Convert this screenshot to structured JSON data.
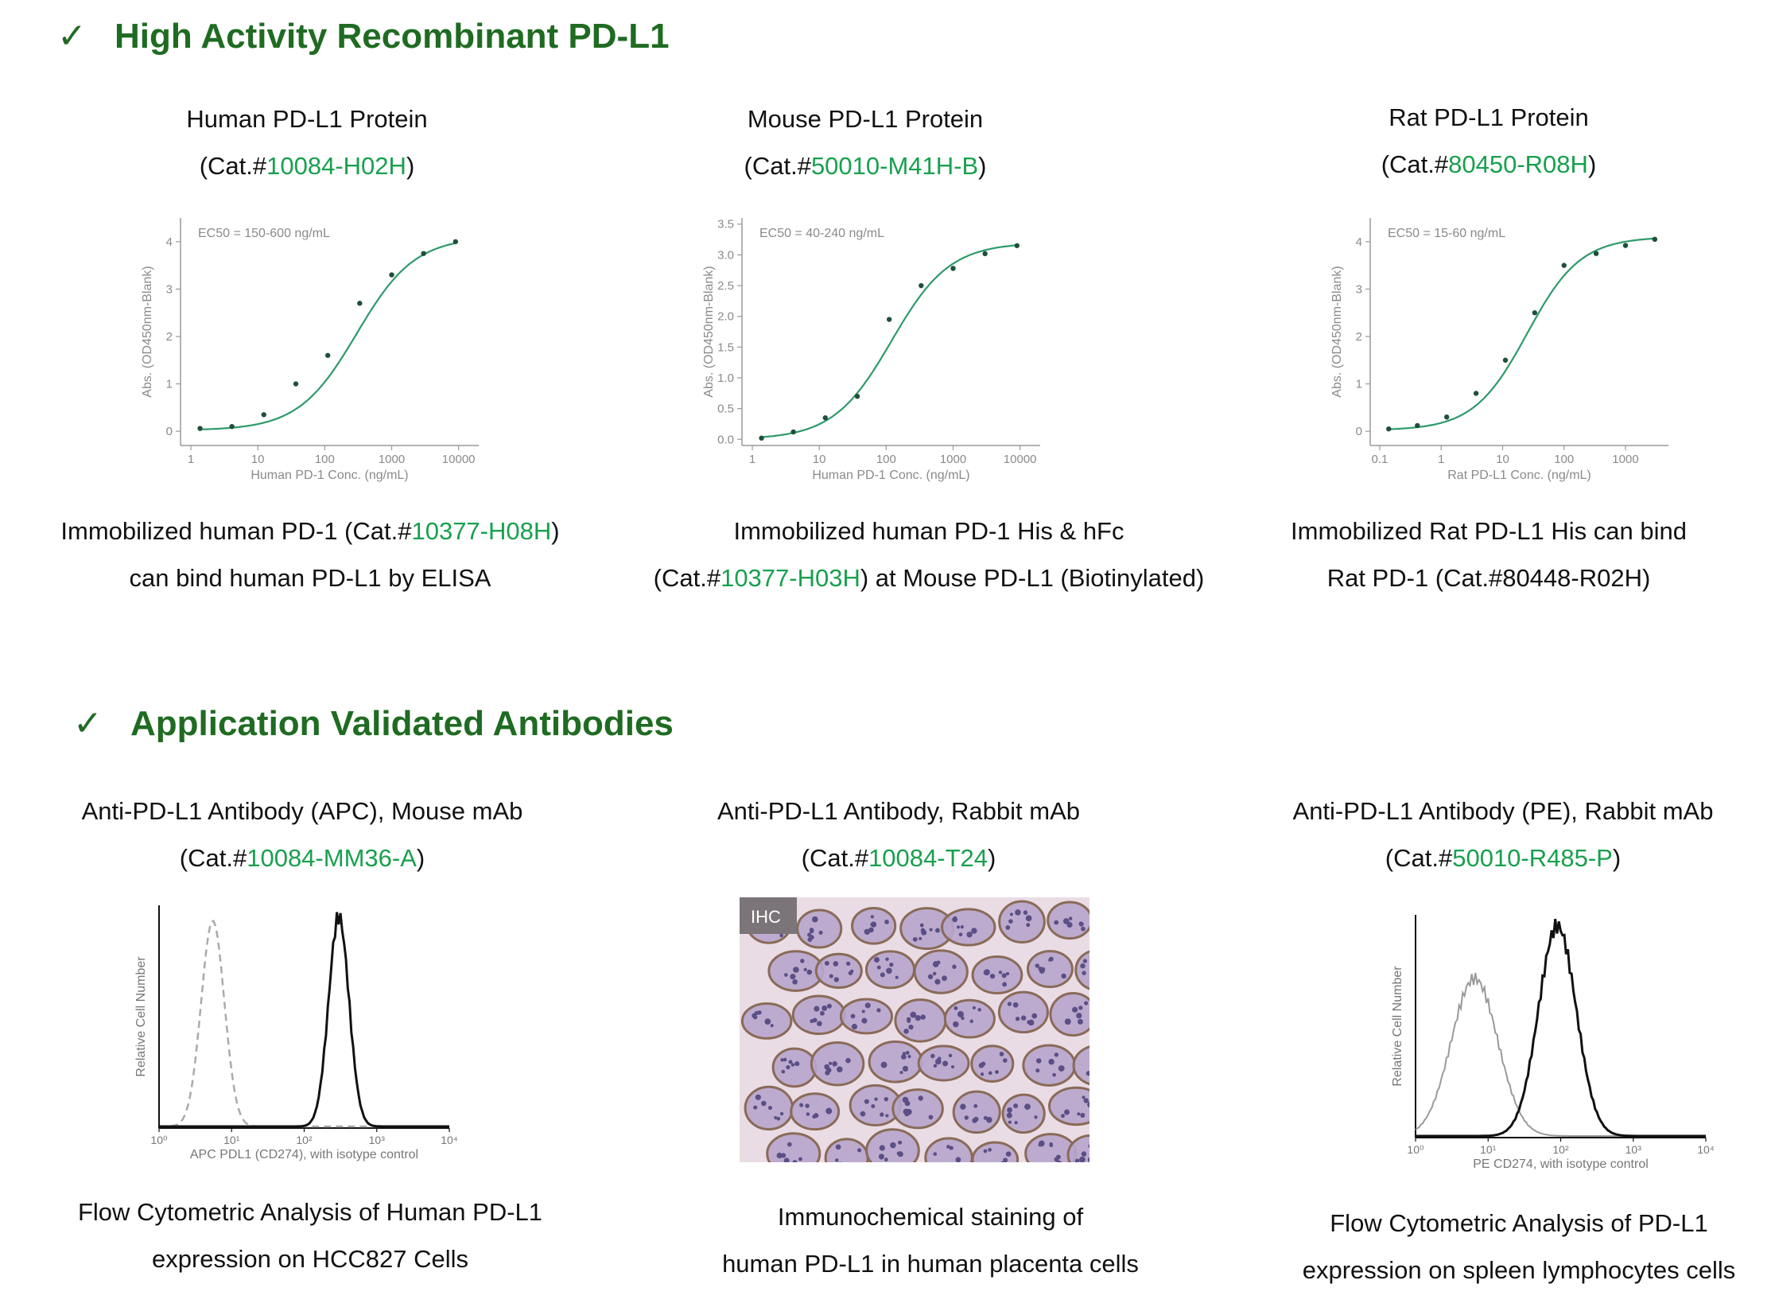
{
  "sections": [
    {
      "check": "✓",
      "title": "High Activity Recombinant PD-L1"
    },
    {
      "check": "✓",
      "title": "Application Validated Antibodies"
    }
  ],
  "proteins": [
    {
      "name": "Human PD-L1 Protein",
      "cat_prefix": "(Cat.#",
      "cat_id": "10084-H02H",
      "cat_suffix": ")",
      "caption_l1_pre": "Immobilized human PD-1 (Cat.#",
      "caption_l1_id": "10377-H08H",
      "caption_l1_post": ")",
      "caption_l2_pre": "can bind human PD-L1 by ELISA",
      "caption_l2_id": "",
      "caption_l2_post": ""
    },
    {
      "name": "Mouse PD-L1 Protein",
      "cat_prefix": "(Cat.#",
      "cat_id": "50010-M41H-B",
      "cat_suffix": ")",
      "caption_l1_pre": "Immobilized human PD-1 His & hFc",
      "caption_l1_id": "",
      "caption_l1_post": "",
      "caption_l2_pre": "(Cat.#",
      "caption_l2_id": "10377-H03H",
      "caption_l2_post": ") at Mouse PD-L1 (Biotinylated)"
    },
    {
      "name": "Rat PD-L1 Protein",
      "cat_prefix": "(Cat.#",
      "cat_id": "80450-R08H",
      "cat_suffix": ")",
      "caption_l1_pre": "Immobilized Rat PD-L1 His can bind",
      "caption_l1_id": "",
      "caption_l1_post": "",
      "caption_l2_pre": "Rat PD-1 (Cat.#80448-R02H)",
      "caption_l2_id": "",
      "caption_l2_post": ""
    }
  ],
  "antibodies": [
    {
      "name": "Anti-PD-L1 Antibody (APC), Mouse mAb",
      "cat_prefix": "(Cat.#",
      "cat_id": "10084-MM36-A",
      "cat_suffix": ")",
      "caption_l1": "Flow Cytometric Analysis of Human PD-L1",
      "caption_l2": "expression on HCC827 Cells"
    },
    {
      "name": "Anti-PD-L1 Antibody, Rabbit mAb",
      "cat_prefix": "(Cat.#",
      "cat_id": "10084-T24",
      "cat_suffix": ")",
      "caption_l1": "Immunochemical staining of",
      "caption_l2": "human PD-L1 in human placenta cells"
    },
    {
      "name": "Anti-PD-L1 Antibody (PE), Rabbit mAb",
      "cat_prefix": "(Cat.#",
      "cat_id": "50010-R485-P",
      "cat_suffix": ")",
      "caption_l1": "Flow Cytometric Analysis of PD-L1",
      "caption_l2": "expression on spleen lymphocytes cells"
    }
  ],
  "ihc_label": "IHC",
  "colors": {
    "heading": "#1f6b22",
    "catalog": "#18a04e",
    "curve": "#2e9a6a"
  },
  "chart_data": [
    {
      "type": "line",
      "annotation": "EC50 = 150-600 ng/mL",
      "xlabel": "Human PD-1 Conc. (ng/mL)",
      "ylabel": "Abs. (OD450nm-Blank)",
      "xscale": "log",
      "xlim": [
        0.7,
        20000
      ],
      "ylim": [
        -0.3,
        4.5
      ],
      "xticks": [
        1,
        10,
        100,
        1000,
        10000
      ],
      "xticklabels": [
        "1",
        "10",
        "100",
        "1000",
        "10000"
      ],
      "yticks": [
        0,
        1,
        2,
        3,
        4
      ],
      "yticklabels": [
        "0",
        "1",
        "2",
        "3",
        "4"
      ],
      "x": [
        1.37,
        4.1,
        12.3,
        37,
        111,
        333,
        1000,
        3000,
        9000
      ],
      "y": [
        0.06,
        0.1,
        0.35,
        1.0,
        1.6,
        2.7,
        3.3,
        3.75,
        4.0
      ],
      "fit": {
        "bottom": 0.02,
        "top": 4.1,
        "ec50": 300,
        "hill": 1.0
      }
    },
    {
      "type": "line",
      "annotation": "EC50 = 40-240 ng/mL",
      "xlabel": "Human PD-1 Conc. (ng/mL)",
      "ylabel": "Abs. (OD450nm-Blank)",
      "xscale": "log",
      "xlim": [
        0.7,
        20000
      ],
      "ylim": [
        -0.1,
        3.6
      ],
      "xticks": [
        1,
        10,
        100,
        1000,
        10000
      ],
      "xticklabels": [
        "1",
        "10",
        "100",
        "1000",
        "10000"
      ],
      "yticks": [
        0,
        0.5,
        1,
        1.5,
        2,
        2.5,
        3,
        3.5
      ],
      "yticklabels": [
        "0.0",
        "0.5",
        "1.0",
        "1.5",
        "2.0",
        "2.5",
        "3.0",
        "3.5"
      ],
      "x": [
        1.37,
        4.1,
        12.3,
        37,
        111,
        333,
        1000,
        3000,
        9000
      ],
      "y": [
        0.02,
        0.12,
        0.35,
        0.7,
        1.95,
        2.5,
        2.78,
        3.02,
        3.15
      ],
      "fit": {
        "bottom": 0.0,
        "top": 3.2,
        "ec50": 120,
        "hill": 1.0
      }
    },
    {
      "type": "line",
      "annotation": "EC50 = 15-60 ng/mL",
      "xlabel": "Rat PD-L1 Conc. (ng/mL)",
      "ylabel": "Abs. (OD450nm-Blank)",
      "xscale": "log",
      "xlim": [
        0.07,
        5000
      ],
      "ylim": [
        -0.3,
        4.5
      ],
      "xticks": [
        0.1,
        1,
        10,
        100,
        1000
      ],
      "xticklabels": [
        "0.1",
        "1",
        "10",
        "100",
        "1000"
      ],
      "yticks": [
        0,
        1,
        2,
        3,
        4
      ],
      "yticklabels": [
        "0",
        "1",
        "2",
        "3",
        "4"
      ],
      "x": [
        0.14,
        0.41,
        1.23,
        3.7,
        11.1,
        33.3,
        100,
        333,
        1000,
        3000
      ],
      "y": [
        0.05,
        0.12,
        0.3,
        0.8,
        1.5,
        2.5,
        3.5,
        3.75,
        3.92,
        4.05
      ],
      "fit": {
        "bottom": 0.02,
        "top": 4.1,
        "ec50": 25,
        "hill": 1.0
      }
    },
    {
      "type": "area",
      "xlabel": "APC PDL1 (CD274), with isotype control",
      "ylabel": "Relative Cell Number",
      "xscale": "log",
      "xlim": [
        1,
        10000
      ],
      "xticks": [
        1,
        10,
        100,
        1000,
        10000
      ],
      "xticklabels": [
        "10⁰",
        "10¹",
        "10²",
        "10³",
        "10⁴"
      ],
      "series": [
        {
          "style": "dashed",
          "peak": 5.5,
          "width": 0.16,
          "height": 0.98
        },
        {
          "style": "solid",
          "peak": 300,
          "width": 0.14,
          "height": 1.0
        }
      ]
    },
    {
      "type": "area",
      "xlabel": "PE CD274, with isotype control",
      "ylabel": "Relative Cell Number",
      "xscale": "log",
      "xlim": [
        1,
        10000
      ],
      "xticks": [
        1,
        10,
        100,
        1000,
        10000
      ],
      "xticklabels": [
        "10⁰",
        "10¹",
        "10²",
        "10³",
        "10⁴"
      ],
      "series": [
        {
          "style": "grey",
          "peak": 6.5,
          "width": 0.32,
          "height": 0.75
        },
        {
          "style": "solid",
          "peak": 90,
          "width": 0.26,
          "height": 1.0
        }
      ]
    }
  ]
}
